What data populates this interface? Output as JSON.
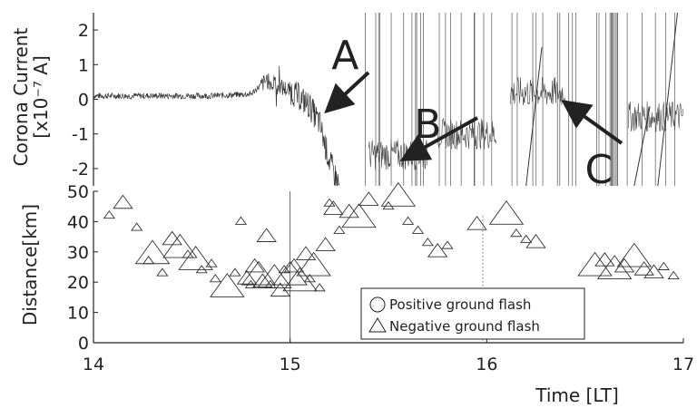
{
  "chart_data": [
    {
      "type": "line",
      "ylabel_line1": "Corona Current",
      "ylabel_line2": "[x10⁻⁷ A]",
      "xlim": [
        14,
        17
      ],
      "ylim": [
        -2.5,
        2.5
      ],
      "yticks": [
        2,
        1,
        0,
        -1,
        -2
      ],
      "grid": false,
      "series": [
        {
          "x": [
            14.0,
            14.2,
            14.4,
            14.6,
            14.8,
            14.88,
            14.95,
            15.0,
            15.05,
            15.1,
            15.15,
            15.2,
            15.25
          ],
          "y": [
            0.1,
            0.1,
            0.1,
            0.1,
            0.15,
            0.55,
            0.35,
            0.25,
            0.05,
            -0.2,
            -0.7,
            -1.8,
            -2.5
          ]
        }
      ],
      "annotations": [
        {
          "label": "A",
          "x": 15.28,
          "y": 1.3
        },
        {
          "label": "B",
          "x": 15.7,
          "y": -0.7
        },
        {
          "label": "C",
          "x": 16.57,
          "y": -2.0
        }
      ]
    },
    {
      "type": "scatter",
      "ylabel": "Distance[km]",
      "xlabel": "Time [LT]",
      "xlim": [
        14,
        17
      ],
      "ylim": [
        0,
        50
      ],
      "xticks": [
        14,
        15,
        16,
        17
      ],
      "yticks": [
        0,
        10,
        20,
        30,
        40,
        50
      ],
      "grid": false,
      "legend": {
        "position": "bottom-center",
        "entries": [
          {
            "symbol": "circle",
            "label": "Positive ground flash"
          },
          {
            "symbol": "triangle",
            "label": "Negative ground flash"
          }
        ]
      },
      "series": [
        {
          "symbol": "triangle",
          "x": [
            14.08,
            14.15,
            14.22,
            14.3,
            14.28,
            14.35,
            14.4,
            14.44,
            14.48,
            14.52,
            14.55,
            14.6,
            14.62,
            14.68,
            14.72,
            14.75,
            14.78,
            14.8,
            14.82,
            14.84,
            14.86,
            14.88,
            14.9,
            14.92,
            14.95,
            14.97,
            15.0,
            15.02,
            15.05,
            15.08,
            15.1,
            15.12,
            15.15,
            15.18,
            15.2,
            15.22,
            15.25,
            15.3,
            15.35,
            15.4,
            15.5,
            15.55,
            15.6,
            15.65,
            15.7,
            15.75,
            15.8,
            15.95,
            16.1,
            16.15,
            16.2,
            16.25,
            16.55,
            16.6,
            16.65,
            16.7,
            16.75,
            16.8,
            16.85,
            16.9,
            16.95
          ],
          "y": [
            42,
            46,
            38,
            29,
            27,
            23,
            34,
            31,
            29,
            27,
            24,
            26,
            21,
            18,
            23,
            40,
            21,
            19,
            25,
            22,
            20,
            35,
            19,
            21,
            17,
            24,
            22,
            25,
            20,
            29,
            21,
            25,
            18,
            32,
            46,
            44,
            37,
            43,
            41,
            47,
            45,
            48,
            40,
            37,
            33,
            30,
            32,
            39,
            42,
            36,
            34,
            33,
            25,
            27,
            24,
            25,
            28,
            24,
            23,
            25,
            22
          ],
          "size": [
            1,
            2,
            1,
            3,
            1,
            1,
            2,
            3,
            1,
            3,
            1,
            1,
            1,
            3,
            1,
            1,
            2,
            1,
            2,
            3,
            2,
            2,
            1,
            3,
            2,
            1,
            3,
            2,
            3,
            2,
            1,
            3,
            1,
            2,
            1,
            2,
            1,
            2,
            3,
            2,
            1,
            3,
            1,
            1,
            1,
            2,
            1,
            2,
            3,
            1,
            1,
            2,
            3,
            2,
            3,
            2,
            3,
            2,
            2,
            1,
            1
          ]
        }
      ]
    }
  ]
}
